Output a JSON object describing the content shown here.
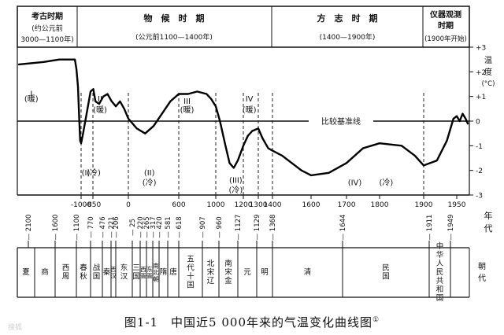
{
  "periods": [
    {
      "title": "考古时期",
      "subtitle": "(约公元前",
      "range": "3000—1100年)"
    },
    {
      "title": "物　候　时　期",
      "range": "(公元前1100—1400年)"
    },
    {
      "title": "方　志　时　期",
      "range": "(1400—1900年)"
    },
    {
      "title": "仪器观测",
      "subtitle": "时期",
      "range": "(1900年开始)"
    }
  ],
  "y_axis_label_lines": [
    "温",
    "度",
    "(°C)"
  ],
  "baseline_label": "比较基准线",
  "chart_data": {
    "type": "line",
    "xlabel_lines": [
      "年",
      "代"
    ],
    "y_ticks": [
      "+3",
      "+2",
      "+1",
      "0",
      "-1",
      "-2",
      "-3"
    ],
    "ylim": [
      -3,
      3
    ],
    "x_ticks": [
      "-1000",
      "-850",
      "0",
      "600",
      "1000",
      "1200",
      "1300",
      "1400",
      "1600",
      "1700",
      "1800",
      "1900",
      "1950"
    ],
    "series": [
      {
        "x": [
          "-3000",
          "-2200",
          "-1700",
          "-1200",
          "-1150",
          "-1100",
          "-1060",
          "-1030",
          "-1000",
          "-975",
          "-930",
          "-880",
          "-840",
          "-790",
          "-700",
          "-600",
          "-500",
          "-400",
          "-300",
          "-200",
          "-100",
          "0",
          "100",
          "200",
          "300",
          "400",
          "500",
          "600",
          "700",
          "800",
          "900",
          "950",
          "1000",
          "1030",
          "1070",
          "1100",
          "1130",
          "1160",
          "1200",
          "1230",
          "1260",
          "1300",
          "1330",
          "1370",
          "1400",
          "1450",
          "1500",
          "1550",
          "1600",
          "1650",
          "1700",
          "1750",
          "1800",
          "1850",
          "1880",
          "1900",
          "1920",
          "1935",
          "1945",
          "1950",
          "1958",
          "1966",
          "1974",
          "1980"
        ],
        "y": [
          2.3,
          2.4,
          2.5,
          2.5,
          2.1,
          1.4,
          0.1,
          -0.8,
          -0.9,
          -0.5,
          0.3,
          1.2,
          1.3,
          0.8,
          0.7,
          1.0,
          1.1,
          0.8,
          0.6,
          0.8,
          0.5,
          0.1,
          -0.3,
          -0.5,
          -0.2,
          0.3,
          0.8,
          1.1,
          1.1,
          1.2,
          1.1,
          0.9,
          0.6,
          0.0,
          -1.0,
          -1.7,
          -1.9,
          -1.6,
          -1.0,
          -0.6,
          -0.4,
          -0.3,
          -0.7,
          -1.1,
          -1.2,
          -1.4,
          -1.7,
          -2.0,
          -2.2,
          -2.1,
          -1.7,
          -1.1,
          -0.9,
          -1.0,
          -1.4,
          -1.8,
          -1.6,
          -0.8,
          0.1,
          0.2,
          0.0,
          0.3,
          0.1,
          -0.1
        ]
      }
    ],
    "annotations": [
      {
        "text": "I",
        "x": "-2600",
        "y": "1.0"
      },
      {
        "text": "(暖)",
        "x": "-2600",
        "y": "0.8"
      },
      {
        "text": "II",
        "x": "-680",
        "y": "0.8"
      },
      {
        "text": "(暖)",
        "x": "-680",
        "y": "0.35"
      },
      {
        "text": "(I)",
        "x": "-940",
        "y": "-2.2"
      },
      {
        "text": "(冷)",
        "x": "-830",
        "y": "-2.2"
      },
      {
        "text": "(II)",
        "x": "250",
        "y": "-2.2"
      },
      {
        "text": "(冷)",
        "x": "250",
        "y": "-2.6"
      },
      {
        "text": "III",
        "x": "690",
        "y": "0.7"
      },
      {
        "text": "(暖)",
        "x": "690",
        "y": "0.35"
      },
      {
        "text": "IV",
        "x": "1240",
        "y": "0.8"
      },
      {
        "text": "(暖)",
        "x": "1240",
        "y": "0.35"
      },
      {
        "text": "(III)",
        "x": "1145",
        "y": "-2.5"
      },
      {
        "text": "(冷)",
        "x": "1145",
        "y": "-2.9"
      },
      {
        "text": "(IV)",
        "x": "1725",
        "y": "-2.6"
      },
      {
        "text": "(冷)",
        "x": "1815",
        "y": "-2.6"
      }
    ],
    "dashed_guides": [
      "-1000",
      "-850",
      "0",
      "600",
      "1000",
      "1200",
      "1300",
      "1400",
      "1900"
    ]
  },
  "timeline": {
    "year_marks": [
      "2100",
      "1600",
      "1100",
      "770",
      "476",
      "221",
      "206",
      "25",
      "220",
      "265",
      "317",
      "420",
      "581",
      "618",
      "907",
      "960",
      "1127",
      "1129",
      "1368",
      "1644",
      "1911",
      "1949"
    ],
    "dynasties": [
      "夏",
      "商",
      "西周",
      "春秋",
      "战国",
      "秦",
      "西汉",
      "东汉",
      "三国",
      "西晋",
      "东晋",
      "南北朝",
      "隋",
      "唐",
      "五代十国",
      "北宋辽",
      "南宋金",
      "元",
      "明",
      "清",
      "民国",
      "中华人民共和国"
    ],
    "row_label": "朝代"
  },
  "caption": {
    "text": "图1-1　中国近5 000年来的气温变化曲线图",
    "mark": "①"
  },
  "watermark": "搜狐"
}
